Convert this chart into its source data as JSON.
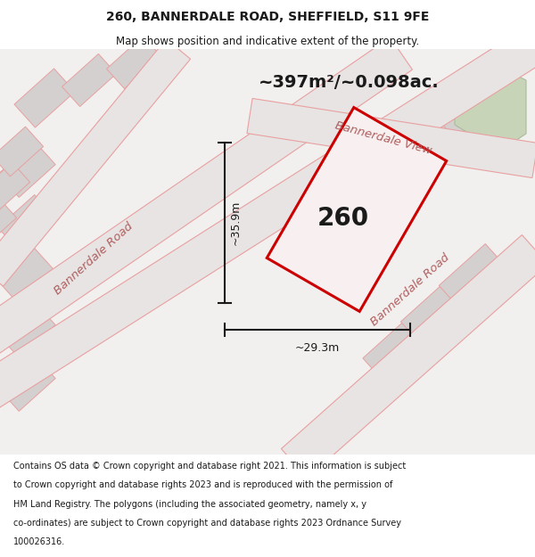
{
  "title_line1": "260, BANNERDALE ROAD, SHEFFIELD, S11 9FE",
  "title_line2": "Map shows position and indicative extent of the property.",
  "area_text": "~397m²/~0.098ac.",
  "property_number": "260",
  "dim_vertical": "~35.9m",
  "dim_horizontal": "~29.3m",
  "footer_lines": [
    "Contains OS data © Crown copyright and database right 2021. This information is subject",
    "to Crown copyright and database rights 2023 and is reproduced with the permission of",
    "HM Land Registry. The polygons (including the associated geometry, namely x, y",
    "co-ordinates) are subject to Crown copyright and database rights 2023 Ordnance Survey",
    "100026316."
  ],
  "map_bg": "#f0eeee",
  "road_line_color": "#e8a0a0",
  "building_fill": "#d8d4d4",
  "building_edge": "#c8c0c0",
  "property_outline_color": "#cc0000",
  "property_fill_color": "#f8f0f0",
  "dim_line_color": "#1a1a1a",
  "text_color": "#1a1a1a",
  "road_label_color": "#b06060",
  "white_bg": "#ffffff",
  "green_color": "#c8d4b8"
}
